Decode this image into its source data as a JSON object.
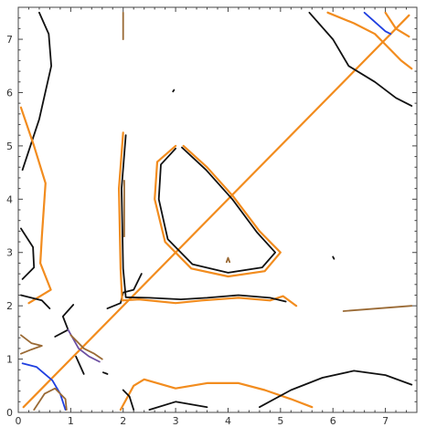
{
  "chart_data": {
    "type": "line",
    "title": "",
    "xlabel": "",
    "ylabel": "",
    "xlim": [
      0,
      7.6
    ],
    "ylim": [
      0,
      7.6
    ],
    "x_ticks": [
      0,
      1,
      2,
      3,
      4,
      5,
      6,
      7
    ],
    "y_ticks": [
      0,
      1,
      2,
      3,
      4,
      5,
      6,
      7
    ],
    "grid": false,
    "legend": "none",
    "colors": {
      "black": "#111111",
      "orange": "#f28c1e",
      "brown": "#9a6a35",
      "blue": "#1f3fe0",
      "purple": "#6c4fa2"
    },
    "series": [
      {
        "color": "orange",
        "points": [
          [
            0.1,
            0.1
          ],
          [
            7.45,
            7.45
          ]
        ]
      },
      {
        "color": "black",
        "points": [
          [
            0.08,
            4.55
          ],
          [
            0.4,
            5.5
          ],
          [
            0.63,
            6.5
          ],
          [
            0.58,
            7.1
          ],
          [
            0.4,
            7.5
          ]
        ]
      },
      {
        "color": "orange",
        "points": [
          [
            0.05,
            5.72
          ],
          [
            0.3,
            5.0
          ],
          [
            0.52,
            4.3
          ],
          [
            0.45,
            3.3
          ],
          [
            0.42,
            2.8
          ],
          [
            0.62,
            2.3
          ],
          [
            0.2,
            2.05
          ]
        ]
      },
      {
        "color": "black",
        "points": [
          [
            0.05,
            3.45
          ],
          [
            0.28,
            3.1
          ],
          [
            0.3,
            2.72
          ],
          [
            0.08,
            2.5
          ]
        ]
      },
      {
        "color": "black",
        "points": [
          [
            0.05,
            2.2
          ],
          [
            0.45,
            2.1
          ],
          [
            0.6,
            1.95
          ]
        ]
      },
      {
        "color": "brown",
        "points": [
          [
            0.05,
            1.45
          ],
          [
            0.25,
            1.3
          ],
          [
            0.45,
            1.25
          ],
          [
            0.25,
            1.18
          ],
          [
            0.05,
            1.1
          ]
        ]
      },
      {
        "color": "blue",
        "points": [
          [
            0.08,
            0.92
          ],
          [
            0.35,
            0.85
          ],
          [
            0.65,
            0.6
          ],
          [
            0.8,
            0.35
          ],
          [
            0.9,
            0.05
          ]
        ]
      },
      {
        "color": "brown",
        "points": [
          [
            0.3,
            0.05
          ],
          [
            0.5,
            0.35
          ],
          [
            0.7,
            0.45
          ],
          [
            0.9,
            0.25
          ],
          [
            0.92,
            0.05
          ]
        ]
      },
      {
        "color": "black",
        "points": [
          [
            1.05,
            2.02
          ],
          [
            0.85,
            1.8
          ],
          [
            0.95,
            1.55
          ],
          [
            0.7,
            1.42
          ]
        ]
      },
      {
        "color": "black",
        "points": [
          [
            1.1,
            1.05
          ],
          [
            1.25,
            0.72
          ]
        ]
      },
      {
        "color": "purple",
        "points": [
          [
            0.95,
            1.55
          ],
          [
            1.15,
            1.2
          ],
          [
            1.35,
            1.05
          ],
          [
            1.55,
            0.95
          ]
        ]
      },
      {
        "color": "brown",
        "points": [
          [
            1.0,
            1.45
          ],
          [
            1.25,
            1.2
          ],
          [
            1.45,
            1.1
          ],
          [
            1.6,
            1.0
          ]
        ]
      },
      {
        "color": "black",
        "points": [
          [
            1.62,
            0.75
          ],
          [
            1.7,
            0.72
          ]
        ]
      },
      {
        "color": "black",
        "points": [
          [
            1.7,
            1.95
          ],
          [
            1.95,
            2.05
          ],
          [
            2.0,
            2.25
          ],
          [
            2.2,
            2.3
          ],
          [
            2.35,
            2.6
          ]
        ]
      },
      {
        "color": "orange",
        "points": [
          [
            2.0,
            5.25
          ],
          [
            1.92,
            4.2
          ],
          [
            1.95,
            2.7
          ],
          [
            1.98,
            2.1
          ],
          [
            2.3,
            2.12
          ],
          [
            3.0,
            2.05
          ],
          [
            3.5,
            2.1
          ],
          [
            4.2,
            2.15
          ],
          [
            4.8,
            2.1
          ],
          [
            5.05,
            2.18
          ],
          [
            5.3,
            2.0
          ]
        ]
      },
      {
        "color": "black",
        "points": [
          [
            2.05,
            5.2
          ],
          [
            1.97,
            4.2
          ],
          [
            2.0,
            2.7
          ],
          [
            2.05,
            2.16
          ],
          [
            2.5,
            2.15
          ],
          [
            3.1,
            2.12
          ],
          [
            3.6,
            2.15
          ],
          [
            4.2,
            2.2
          ],
          [
            4.8,
            2.15
          ],
          [
            5.1,
            2.08
          ]
        ]
      },
      {
        "color": "brown",
        "points": [
          [
            2.02,
            4.35
          ],
          [
            2.02,
            3.3
          ]
        ]
      },
      {
        "color": "orange",
        "points": [
          [
            3.0,
            5.0
          ],
          [
            2.65,
            4.7
          ],
          [
            2.6,
            4.0
          ],
          [
            2.8,
            3.2
          ],
          [
            3.3,
            2.7
          ],
          [
            4.0,
            2.55
          ],
          [
            4.7,
            2.65
          ],
          [
            5.0,
            3.0
          ],
          [
            4.6,
            3.4
          ],
          [
            4.1,
            4.05
          ],
          [
            3.6,
            4.6
          ],
          [
            3.15,
            5.0
          ]
        ]
      },
      {
        "color": "black",
        "points": [
          [
            3.0,
            4.95
          ],
          [
            2.72,
            4.65
          ],
          [
            2.68,
            4.0
          ],
          [
            2.85,
            3.25
          ],
          [
            3.32,
            2.78
          ],
          [
            4.0,
            2.62
          ],
          [
            4.65,
            2.72
          ],
          [
            4.9,
            3.0
          ],
          [
            4.55,
            3.38
          ],
          [
            4.08,
            4.0
          ],
          [
            3.58,
            4.55
          ],
          [
            3.12,
            4.97
          ]
        ]
      },
      {
        "color": "brown",
        "points": [
          [
            3.97,
            2.82
          ],
          [
            4.0,
            2.9
          ],
          [
            4.03,
            2.82
          ]
        ]
      },
      {
        "color": "black",
        "points": [
          [
            2.95,
            6.02
          ],
          [
            2.97,
            6.05
          ]
        ]
      },
      {
        "color": "brown",
        "points": [
          [
            2.0,
            7.5
          ],
          [
            2.0,
            7.0
          ]
        ]
      },
      {
        "color": "orange",
        "points": [
          [
            1.95,
            0.05
          ],
          [
            2.2,
            0.5
          ],
          [
            2.4,
            0.62
          ],
          [
            3.0,
            0.45
          ],
          [
            3.6,
            0.55
          ],
          [
            4.2,
            0.55
          ],
          [
            4.7,
            0.42
          ],
          [
            5.2,
            0.25
          ],
          [
            5.6,
            0.1
          ]
        ]
      },
      {
        "color": "black",
        "points": [
          [
            2.5,
            0.05
          ],
          [
            3.0,
            0.2
          ],
          [
            3.6,
            0.1
          ]
        ]
      },
      {
        "color": "black",
        "points": [
          [
            2.0,
            0.42
          ],
          [
            2.12,
            0.3
          ],
          [
            2.2,
            0.05
          ]
        ]
      },
      {
        "color": "black",
        "points": [
          [
            4.6,
            0.1
          ],
          [
            5.2,
            0.42
          ],
          [
            5.8,
            0.65
          ],
          [
            6.4,
            0.78
          ],
          [
            7.0,
            0.7
          ],
          [
            7.5,
            0.52
          ]
        ]
      },
      {
        "color": "black",
        "points": [
          [
            5.55,
            7.5
          ],
          [
            6.0,
            7.0
          ],
          [
            6.3,
            6.5
          ],
          [
            6.8,
            6.2
          ],
          [
            7.2,
            5.9
          ],
          [
            7.5,
            5.75
          ]
        ]
      },
      {
        "color": "orange",
        "points": [
          [
            5.9,
            7.5
          ],
          [
            6.4,
            7.3
          ],
          [
            6.8,
            7.1
          ],
          [
            7.0,
            6.9
          ],
          [
            7.3,
            6.6
          ],
          [
            7.5,
            6.45
          ]
        ]
      },
      {
        "color": "orange",
        "points": [
          [
            7.0,
            7.5
          ],
          [
            7.2,
            7.2
          ],
          [
            7.45,
            7.05
          ]
        ]
      },
      {
        "color": "blue",
        "points": [
          [
            6.6,
            7.5
          ],
          [
            7.0,
            7.15
          ],
          [
            7.1,
            7.1
          ]
        ]
      },
      {
        "color": "black",
        "points": [
          [
            6.0,
            2.92
          ],
          [
            6.02,
            2.88
          ]
        ]
      },
      {
        "color": "brown",
        "points": [
          [
            6.2,
            1.9
          ],
          [
            7.5,
            2.0
          ]
        ]
      }
    ]
  }
}
